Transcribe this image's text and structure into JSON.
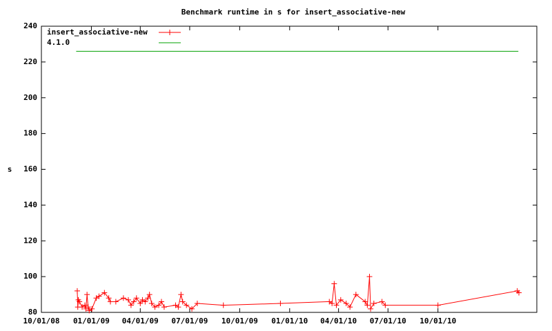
{
  "chart_data": {
    "type": "line",
    "title": "Benchmark runtime in s for insert_associative-new",
    "y_label": "s",
    "xlim": [
      "10/01/08",
      "04/01/11"
    ],
    "xticks": [
      "10/01/08",
      "01/01/09",
      "04/01/09",
      "07/01/09",
      "10/01/09",
      "01/01/10",
      "04/01/10",
      "07/01/10",
      "10/01/10"
    ],
    "ylim": [
      80,
      240
    ],
    "yticks": [
      80,
      100,
      120,
      140,
      160,
      180,
      200,
      220,
      240
    ],
    "legend": "top-left",
    "series": [
      {
        "name": "insert_associative-new",
        "color": "#ff0000",
        "markers": true,
        "x": [
          "12/06/08",
          "12/07/08",
          "12/08/08",
          "12/10/08",
          "12/15/08",
          "12/20/08",
          "12/22/08",
          "12/24/08",
          "12/26/08",
          "12/28/08",
          "01/02/09",
          "01/10/09",
          "01/15/09",
          "01/25/09",
          "02/02/09",
          "02/05/09",
          "02/15/09",
          "03/01/09",
          "03/10/09",
          "03/15/09",
          "03/20/09",
          "03/25/09",
          "04/01/09",
          "04/05/09",
          "04/10/09",
          "04/15/09",
          "04/18/09",
          "04/22/09",
          "04/28/09",
          "05/05/09",
          "05/10/09",
          "05/15/09",
          "06/05/09",
          "06/10/09",
          "06/15/09",
          "06/18/09",
          "06/25/09",
          "07/05/09",
          "07/15/09",
          "09/01/09",
          "12/15/09",
          "03/15/10",
          "03/20/10",
          "03/24/10",
          "03/28/10",
          "04/05/10",
          "04/15/10",
          "04/22/10",
          "05/03/10",
          "05/20/10",
          "05/24/10",
          "05/28/10",
          "05/30/10",
          "06/05/10",
          "06/20/10",
          "06/26/10",
          "10/01/10",
          "02/24/11",
          "02/27/11"
        ],
        "values": [
          92,
          83,
          87,
          86,
          83,
          84,
          82,
          90,
          83,
          81,
          82,
          88,
          89,
          91,
          88,
          86,
          86,
          88,
          87,
          84,
          86,
          88,
          85,
          87,
          86,
          88,
          90,
          85,
          83,
          84,
          86,
          83,
          84,
          83,
          90,
          86,
          84,
          82,
          85,
          84,
          85,
          86,
          85,
          96,
          84,
          87,
          85,
          83,
          90,
          86,
          84,
          100,
          82,
          85,
          86,
          84,
          84,
          92,
          91
        ]
      },
      {
        "name": "4.1.0",
        "color": "#00a000",
        "markers": false,
        "x": [
          "12/04/08",
          "02/26/11"
        ],
        "values": [
          226,
          226
        ]
      }
    ]
  }
}
